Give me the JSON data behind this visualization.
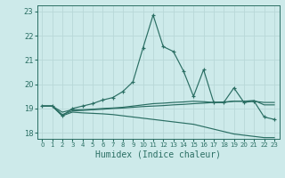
{
  "title": "",
  "xlabel": "Humidex (Indice chaleur)",
  "ylabel": "",
  "bg_color": "#cdeaea",
  "line_color": "#2a6e63",
  "grid_color": "#b8d8d8",
  "xlim": [
    -0.5,
    23.5
  ],
  "ylim": [
    17.75,
    23.25
  ],
  "yticks": [
    18,
    19,
    20,
    21,
    22,
    23
  ],
  "xticks": [
    0,
    1,
    2,
    3,
    4,
    5,
    6,
    7,
    8,
    9,
    10,
    11,
    12,
    13,
    14,
    15,
    16,
    17,
    18,
    19,
    20,
    21,
    22,
    23
  ],
  "lines": [
    {
      "x": [
        0,
        1,
        2,
        3,
        4,
        5,
        6,
        7,
        8,
        9,
        10,
        11,
        12,
        13,
        14,
        15,
        16,
        17,
        18,
        19,
        20,
        21,
        22,
        23
      ],
      "y": [
        19.1,
        19.1,
        18.7,
        19.0,
        19.1,
        19.2,
        19.35,
        19.45,
        19.7,
        20.1,
        21.5,
        22.85,
        21.55,
        21.35,
        20.55,
        19.5,
        20.6,
        19.25,
        19.25,
        19.85,
        19.25,
        19.3,
        18.65,
        18.55
      ],
      "marker": "+"
    },
    {
      "x": [
        0,
        1,
        2,
        3,
        4,
        5,
        6,
        7,
        8,
        9,
        10,
        11,
        12,
        13,
        14,
        15,
        16,
        17,
        18,
        19,
        20,
        21,
        22,
        23
      ],
      "y": [
        19.1,
        19.1,
        18.85,
        18.95,
        18.95,
        18.97,
        19.0,
        19.02,
        19.05,
        19.1,
        19.15,
        19.2,
        19.22,
        19.25,
        19.27,
        19.3,
        19.28,
        19.25,
        19.25,
        19.3,
        19.3,
        19.3,
        19.25,
        19.25
      ],
      "marker": null
    },
    {
      "x": [
        0,
        1,
        2,
        3,
        4,
        5,
        6,
        7,
        8,
        9,
        10,
        11,
        12,
        13,
        14,
        15,
        16,
        17,
        18,
        19,
        20,
        21,
        22,
        23
      ],
      "y": [
        19.1,
        19.1,
        18.7,
        18.85,
        18.82,
        18.8,
        18.78,
        18.75,
        18.7,
        18.65,
        18.6,
        18.55,
        18.5,
        18.45,
        18.4,
        18.35,
        18.25,
        18.15,
        18.05,
        17.95,
        17.9,
        17.85,
        17.8,
        17.8
      ],
      "marker": null
    },
    {
      "x": [
        0,
        1,
        2,
        3,
        4,
        5,
        6,
        7,
        8,
        9,
        10,
        11,
        12,
        13,
        14,
        15,
        16,
        17,
        18,
        19,
        20,
        21,
        22,
        23
      ],
      "y": [
        19.1,
        19.1,
        18.75,
        18.9,
        18.92,
        18.95,
        18.97,
        19.0,
        19.02,
        19.05,
        19.08,
        19.1,
        19.12,
        19.15,
        19.17,
        19.2,
        19.22,
        19.25,
        19.27,
        19.3,
        19.3,
        19.33,
        19.15,
        19.15
      ],
      "marker": null
    }
  ]
}
